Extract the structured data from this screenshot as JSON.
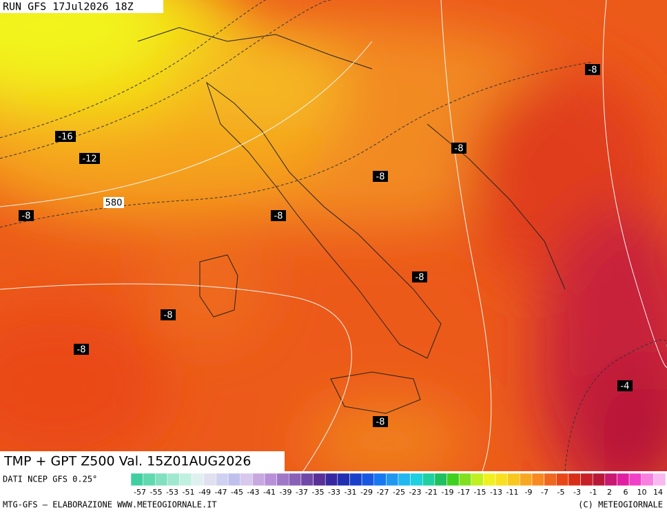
{
  "header": {
    "run": "RUN GFS 17Jul2026 18Z"
  },
  "map": {
    "contour_labels": [
      "-16",
      "-12",
      "580",
      "-8",
      "-8",
      "-8",
      "-8",
      "-8",
      "-8",
      "-8",
      "-8",
      "-8",
      "-4"
    ]
  },
  "title": "TMP + GPT Z500 Val. 15Z01AUG2026",
  "colorbar": {
    "source": "DATI NCEP GFS 0.25°",
    "labels": [
      "-57",
      "-55",
      "-53",
      "-51",
      "-49",
      "-47",
      "-45",
      "-43",
      "-41",
      "-39",
      "-37",
      "-35",
      "-33",
      "-31",
      "-29",
      "-27",
      "-25",
      "-23",
      "-21",
      "-19",
      "-17",
      "-15",
      "-13",
      "-11",
      "-9",
      "-7",
      "-5",
      "-3",
      "-1",
      "2",
      "6",
      "10",
      "14"
    ],
    "colors": [
      "#40d0a0",
      "#60d8b0",
      "#80e0c0",
      "#a0e8d0",
      "#c0f0e0",
      "#e0f0f0",
      "#e0e0f0",
      "#d0d0f0",
      "#c0c0ec",
      "#d8c8ec",
      "#c8a8e0",
      "#b890d8",
      "#a078c8",
      "#8860b8",
      "#7048a8",
      "#583098",
      "#3828a0",
      "#2030b0",
      "#1840c8",
      "#1858e0",
      "#1878f0",
      "#2098f0",
      "#20b8f0",
      "#20d0e0",
      "#20d0a0",
      "#20c060",
      "#40d020",
      "#80e020",
      "#c0f020",
      "#f0f020",
      "#f8e020",
      "#f8c820",
      "#f8a820",
      "#f88820",
      "#f06820",
      "#e84818",
      "#d83018",
      "#c82028",
      "#b81838",
      "#c81870",
      "#e020a0",
      "#f040c8",
      "#f880e0",
      "#f8b8f0"
    ]
  },
  "footer": {
    "left": "MTG-GFS — ELABORAZIONE WWW.METEOGIORNALE.IT",
    "right": "(C) METEOGIORNALE"
  }
}
